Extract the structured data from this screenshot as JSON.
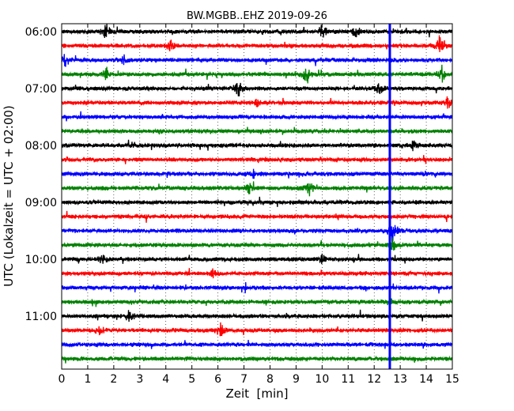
{
  "chart_data": {
    "type": "line",
    "title": "BW.MGBB..EHZ 2019-09-26",
    "xlabel": "Zeit  [min]",
    "ylabel": "UTC (Lokalzeit = UTC + 02:00)",
    "xlim": [
      0,
      15
    ],
    "x_ticks": [
      "0",
      "1",
      "2",
      "3",
      "4",
      "5",
      "6",
      "7",
      "8",
      "9",
      "10",
      "11",
      "12",
      "13",
      "14",
      "15"
    ],
    "y_ticks": [
      "06:00",
      "07:00",
      "08:00",
      "09:00",
      "10:00",
      "11:00"
    ],
    "grid": "vertical dotted at each minute",
    "trace_interval_min": 15,
    "trace_start": "06:00",
    "trace_count": 24,
    "trace_colors": [
      "#000000",
      "#ff0000",
      "#0000ff",
      "#008000"
    ],
    "event_marker": {
      "x": 12.6,
      "color": "#0000ff"
    },
    "events": [
      {
        "trace": 0,
        "x": 1.7,
        "amp": 10
      },
      {
        "trace": 0,
        "x": 10.0,
        "amp": 12
      },
      {
        "trace": 0,
        "x": 11.3,
        "amp": 8
      },
      {
        "trace": 1,
        "x": 4.2,
        "amp": 7
      },
      {
        "trace": 1,
        "x": 14.5,
        "amp": 12
      },
      {
        "trace": 2,
        "x": 0.15,
        "amp": 10
      },
      {
        "trace": 2,
        "x": 2.4,
        "amp": 6
      },
      {
        "trace": 3,
        "x": 1.7,
        "amp": 7
      },
      {
        "trace": 3,
        "x": 9.4,
        "amp": 10
      },
      {
        "trace": 3,
        "x": 14.6,
        "amp": 10
      },
      {
        "trace": 4,
        "x": 6.8,
        "amp": 10
      },
      {
        "trace": 4,
        "x": 12.2,
        "amp": 8
      },
      {
        "trace": 5,
        "x": 7.5,
        "amp": 6
      },
      {
        "trace": 5,
        "x": 14.8,
        "amp": 8
      },
      {
        "trace": 8,
        "x": 13.5,
        "amp": 6
      },
      {
        "trace": 10,
        "x": 7.3,
        "amp": 7
      },
      {
        "trace": 11,
        "x": 9.5,
        "amp": 10
      },
      {
        "trace": 11,
        "x": 7.2,
        "amp": 7
      },
      {
        "trace": 14,
        "x": 12.7,
        "amp": 16
      },
      {
        "trace": 15,
        "x": 12.7,
        "amp": 8
      },
      {
        "trace": 16,
        "x": 1.6,
        "amp": 7
      },
      {
        "trace": 16,
        "x": 10.0,
        "amp": 7
      },
      {
        "trace": 17,
        "x": 5.8,
        "amp": 5
      },
      {
        "trace": 20,
        "x": 2.6,
        "amp": 7
      },
      {
        "trace": 21,
        "x": 1.5,
        "amp": 7
      },
      {
        "trace": 21,
        "x": 6.1,
        "amp": 9
      }
    ]
  }
}
